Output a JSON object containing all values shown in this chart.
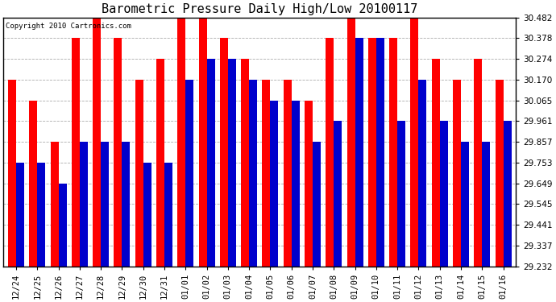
{
  "title": "Barometric Pressure Daily High/Low 20100117",
  "copyright": "Copyright 2010 Cartronics.com",
  "categories": [
    "12/24",
    "12/25",
    "12/26",
    "12/27",
    "12/28",
    "12/29",
    "12/30",
    "12/31",
    "01/01",
    "01/02",
    "01/03",
    "01/04",
    "01/05",
    "01/06",
    "01/07",
    "01/08",
    "01/09",
    "01/10",
    "01/11",
    "01/12",
    "01/13",
    "01/14",
    "01/15",
    "01/16"
  ],
  "highs": [
    30.17,
    30.065,
    29.857,
    30.378,
    30.482,
    30.378,
    30.17,
    30.274,
    30.482,
    30.482,
    30.378,
    30.274,
    30.17,
    30.17,
    30.065,
    30.378,
    30.482,
    30.378,
    30.378,
    30.482,
    30.274,
    30.17,
    30.274,
    30.17
  ],
  "lows": [
    29.753,
    29.753,
    29.649,
    29.857,
    29.857,
    29.857,
    29.753,
    29.753,
    30.17,
    30.274,
    30.274,
    30.17,
    30.065,
    30.065,
    29.857,
    29.961,
    30.378,
    30.378,
    29.961,
    30.17,
    29.961,
    29.857,
    29.857,
    29.961
  ],
  "ylim_min": 29.232,
  "ylim_max": 30.482,
  "yticks": [
    29.232,
    29.337,
    29.441,
    29.545,
    29.649,
    29.753,
    29.857,
    29.961,
    30.065,
    30.17,
    30.274,
    30.378,
    30.482
  ],
  "high_color": "#ff0000",
  "low_color": "#0000cc",
  "bg_color": "#ffffff",
  "grid_color": "#888888",
  "title_fontsize": 11,
  "copyright_fontsize": 6.5,
  "tick_fontsize": 7.5,
  "bar_width": 0.38
}
